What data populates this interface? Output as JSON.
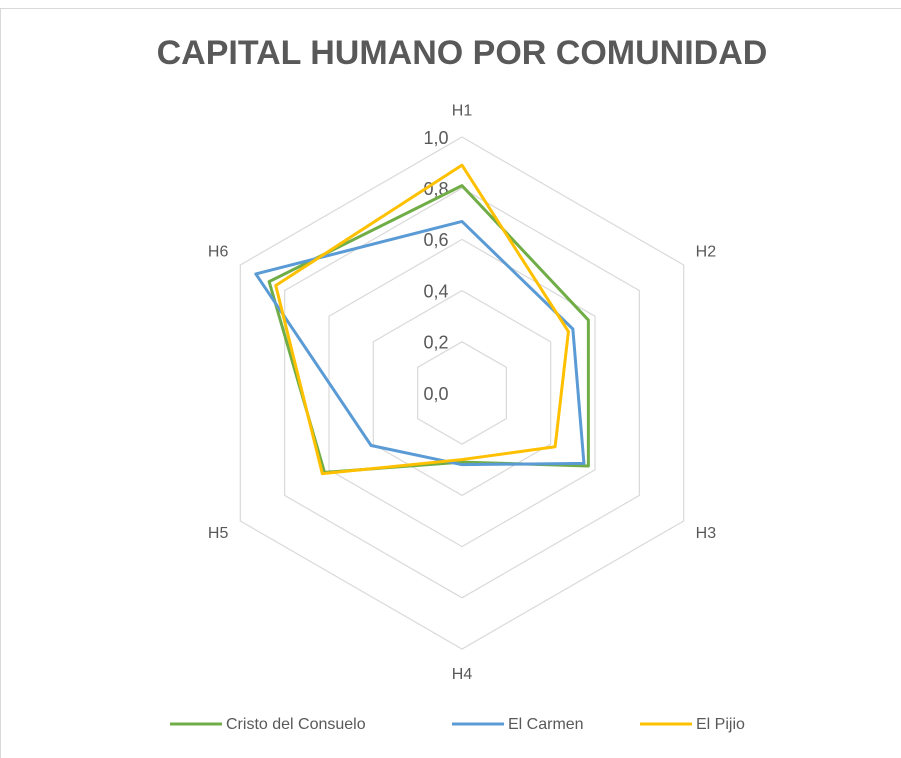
{
  "chart_data": {
    "type": "radar",
    "title": "CAPITAL HUMANO POR COMUNIDAD",
    "categories": [
      "H1",
      "H2",
      "H3",
      "H4",
      "H5",
      "H6"
    ],
    "series": [
      {
        "name": "Cristo del Consuelo",
        "color": "#70ad47",
        "values": [
          0.81,
          0.57,
          0.57,
          0.27,
          0.62,
          0.87
        ]
      },
      {
        "name": "El Carmen",
        "color": "#5b9bd5",
        "values": [
          0.67,
          0.5,
          0.55,
          0.28,
          0.41,
          0.93
        ]
      },
      {
        "name": "El Pijio",
        "color": "#ffc000",
        "values": [
          0.89,
          0.48,
          0.42,
          0.26,
          0.63,
          0.84
        ]
      }
    ],
    "ylim": [
      0,
      1
    ],
    "yticks": [
      {
        "value": 0,
        "label": "0,0"
      },
      {
        "value": 0.2,
        "label": "0,2"
      },
      {
        "value": 0.4,
        "label": "0,4"
      },
      {
        "value": 0.6,
        "label": "0,6"
      },
      {
        "value": 0.8,
        "label": "0,8"
      },
      {
        "value": 1,
        "label": "1,0"
      }
    ],
    "grid": true,
    "legend": "bottom"
  }
}
